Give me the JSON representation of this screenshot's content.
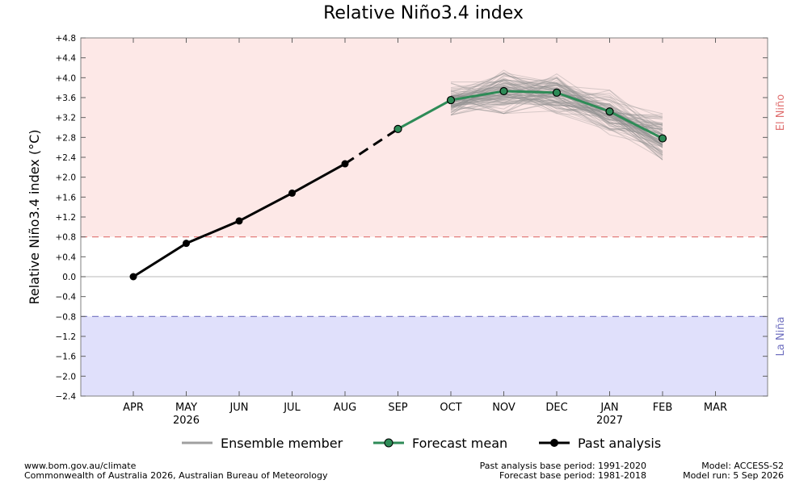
{
  "title": "Relative Niño3.4 index",
  "chart_data": {
    "type": "line",
    "title": "Relative Niño3.4 index",
    "ylabel": "Relative Niño3.4 index (°C)",
    "xlabel": "",
    "ylim": [
      -2.4,
      4.8
    ],
    "yticks": [
      4.8,
      4.4,
      4.0,
      3.6,
      3.2,
      2.8,
      2.4,
      2.0,
      1.6,
      1.2,
      0.8,
      0.4,
      0.0,
      -0.4,
      -0.8,
      -1.2,
      -1.6,
      -2.0,
      -2.4
    ],
    "ytick_labels": [
      "+4.8",
      "+4.4",
      "+4.0",
      "+3.6",
      "+3.2",
      "+2.8",
      "+2.4",
      "+2.0",
      "+1.6",
      "+1.2",
      "+0.8",
      "+0.4",
      "0.0",
      "−0.4",
      "−0.8",
      "−1.2",
      "−1.6",
      "−2.0",
      "−2.4"
    ],
    "categories": [
      "APR",
      "MAY",
      "JUN",
      "JUL",
      "AUG",
      "SEP",
      "OCT",
      "NOV",
      "DEC",
      "JAN",
      "FEB",
      "MAR"
    ],
    "year_labels": [
      {
        "month": "MAY",
        "label": "2026"
      },
      {
        "month": "JAN",
        "label": "2027"
      }
    ],
    "thresholds": [
      {
        "value": 0.8,
        "label": "El Niño",
        "color": "#e07070",
        "region_color": "#fde8e7"
      },
      {
        "value": -0.8,
        "label": "La Niña",
        "color": "#7070c0",
        "region_color": "#e0e0fb"
      }
    ],
    "series": [
      {
        "name": "Past analysis",
        "color": "#000000",
        "points": [
          {
            "month": "APR",
            "value": 0.0
          },
          {
            "month": "MAY",
            "value": 0.67
          },
          {
            "month": "JUN",
            "value": 1.12
          },
          {
            "month": "JUL",
            "value": 1.68
          },
          {
            "month": "AUG",
            "value": 2.27
          }
        ]
      },
      {
        "name": "Forecast mean",
        "color": "#2e8b57",
        "points": [
          {
            "month": "SEP",
            "value": 2.97
          },
          {
            "month": "OCT",
            "value": 3.55
          },
          {
            "month": "NOV",
            "value": 3.73
          },
          {
            "month": "DEC",
            "value": 3.7
          },
          {
            "month": "JAN",
            "value": 3.32
          },
          {
            "month": "FEB",
            "value": 2.78
          }
        ]
      },
      {
        "name": "Ensemble member",
        "color": "#a0a0a0",
        "spread": [
          {
            "month": "OCT",
            "min": 3.25,
            "max": 3.92
          },
          {
            "month": "NOV",
            "min": 3.28,
            "max": 4.25
          },
          {
            "month": "DEC",
            "min": 3.2,
            "max": 4.1
          },
          {
            "month": "JAN",
            "min": 2.85,
            "max": 3.75
          },
          {
            "month": "FEB",
            "min": 2.3,
            "max": 3.3
          }
        ]
      }
    ]
  },
  "legend": {
    "ensemble": "Ensemble member",
    "forecast": "Forecast mean",
    "past": "Past analysis"
  },
  "footer": {
    "left_line1": "www.bom.gov.au/climate",
    "left_line2": "Commonwealth of Australia 2026, Australian Bureau of Meteorology",
    "mid_line1": "Past analysis base period: 1991-2020",
    "mid_line2": "Forecast base period: 1981-2018",
    "right_line1": "Model: ACCESS-S2",
    "right_line2": "Model run: 5 Sep 2026"
  }
}
